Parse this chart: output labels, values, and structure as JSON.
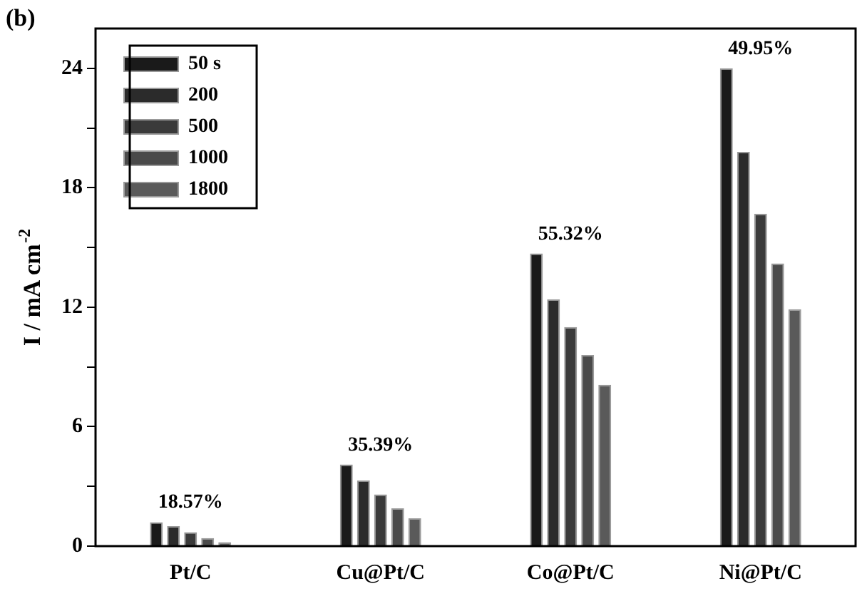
{
  "chart_data": {
    "type": "bar",
    "ylabel": "I / mA cm$^{-2}$",
    "categories": [
      "Pt/C",
      "Cu@Pt/C",
      "Co@Pt/C",
      "Ni@Pt/C"
    ],
    "series": [
      {
        "name": "50 s",
        "color": "#1a1a1a",
        "values": [
          1.2,
          4.1,
          14.7,
          24.0
        ]
      },
      {
        "name": "200",
        "color": "#2b2b2b",
        "values": [
          1.0,
          3.3,
          12.4,
          19.8
        ]
      },
      {
        "name": "500",
        "color": "#3a3a3a",
        "values": [
          0.7,
          2.6,
          11.0,
          16.7
        ]
      },
      {
        "name": "1000",
        "color": "#4a4a4a",
        "values": [
          0.4,
          1.9,
          9.6,
          14.2
        ]
      },
      {
        "name": "1800",
        "color": "#5a5a5a",
        "values": [
          0.2,
          1.4,
          8.1,
          11.9
        ]
      }
    ],
    "ylim": [
      0,
      26
    ],
    "yticks": [
      0,
      {
        "value": 3,
        "label": null
      },
      6,
      {
        "value": 9,
        "label": null
      },
      12,
      {
        "value": 15,
        "label": null
      },
      18,
      {
        "value": 21,
        "label": null
      },
      24
    ],
    "annotations": [
      "(b)",
      "18.57%",
      "35.39%",
      "55.32%",
      "49.95%"
    ],
    "legend": "top left",
    "grid": false
  }
}
